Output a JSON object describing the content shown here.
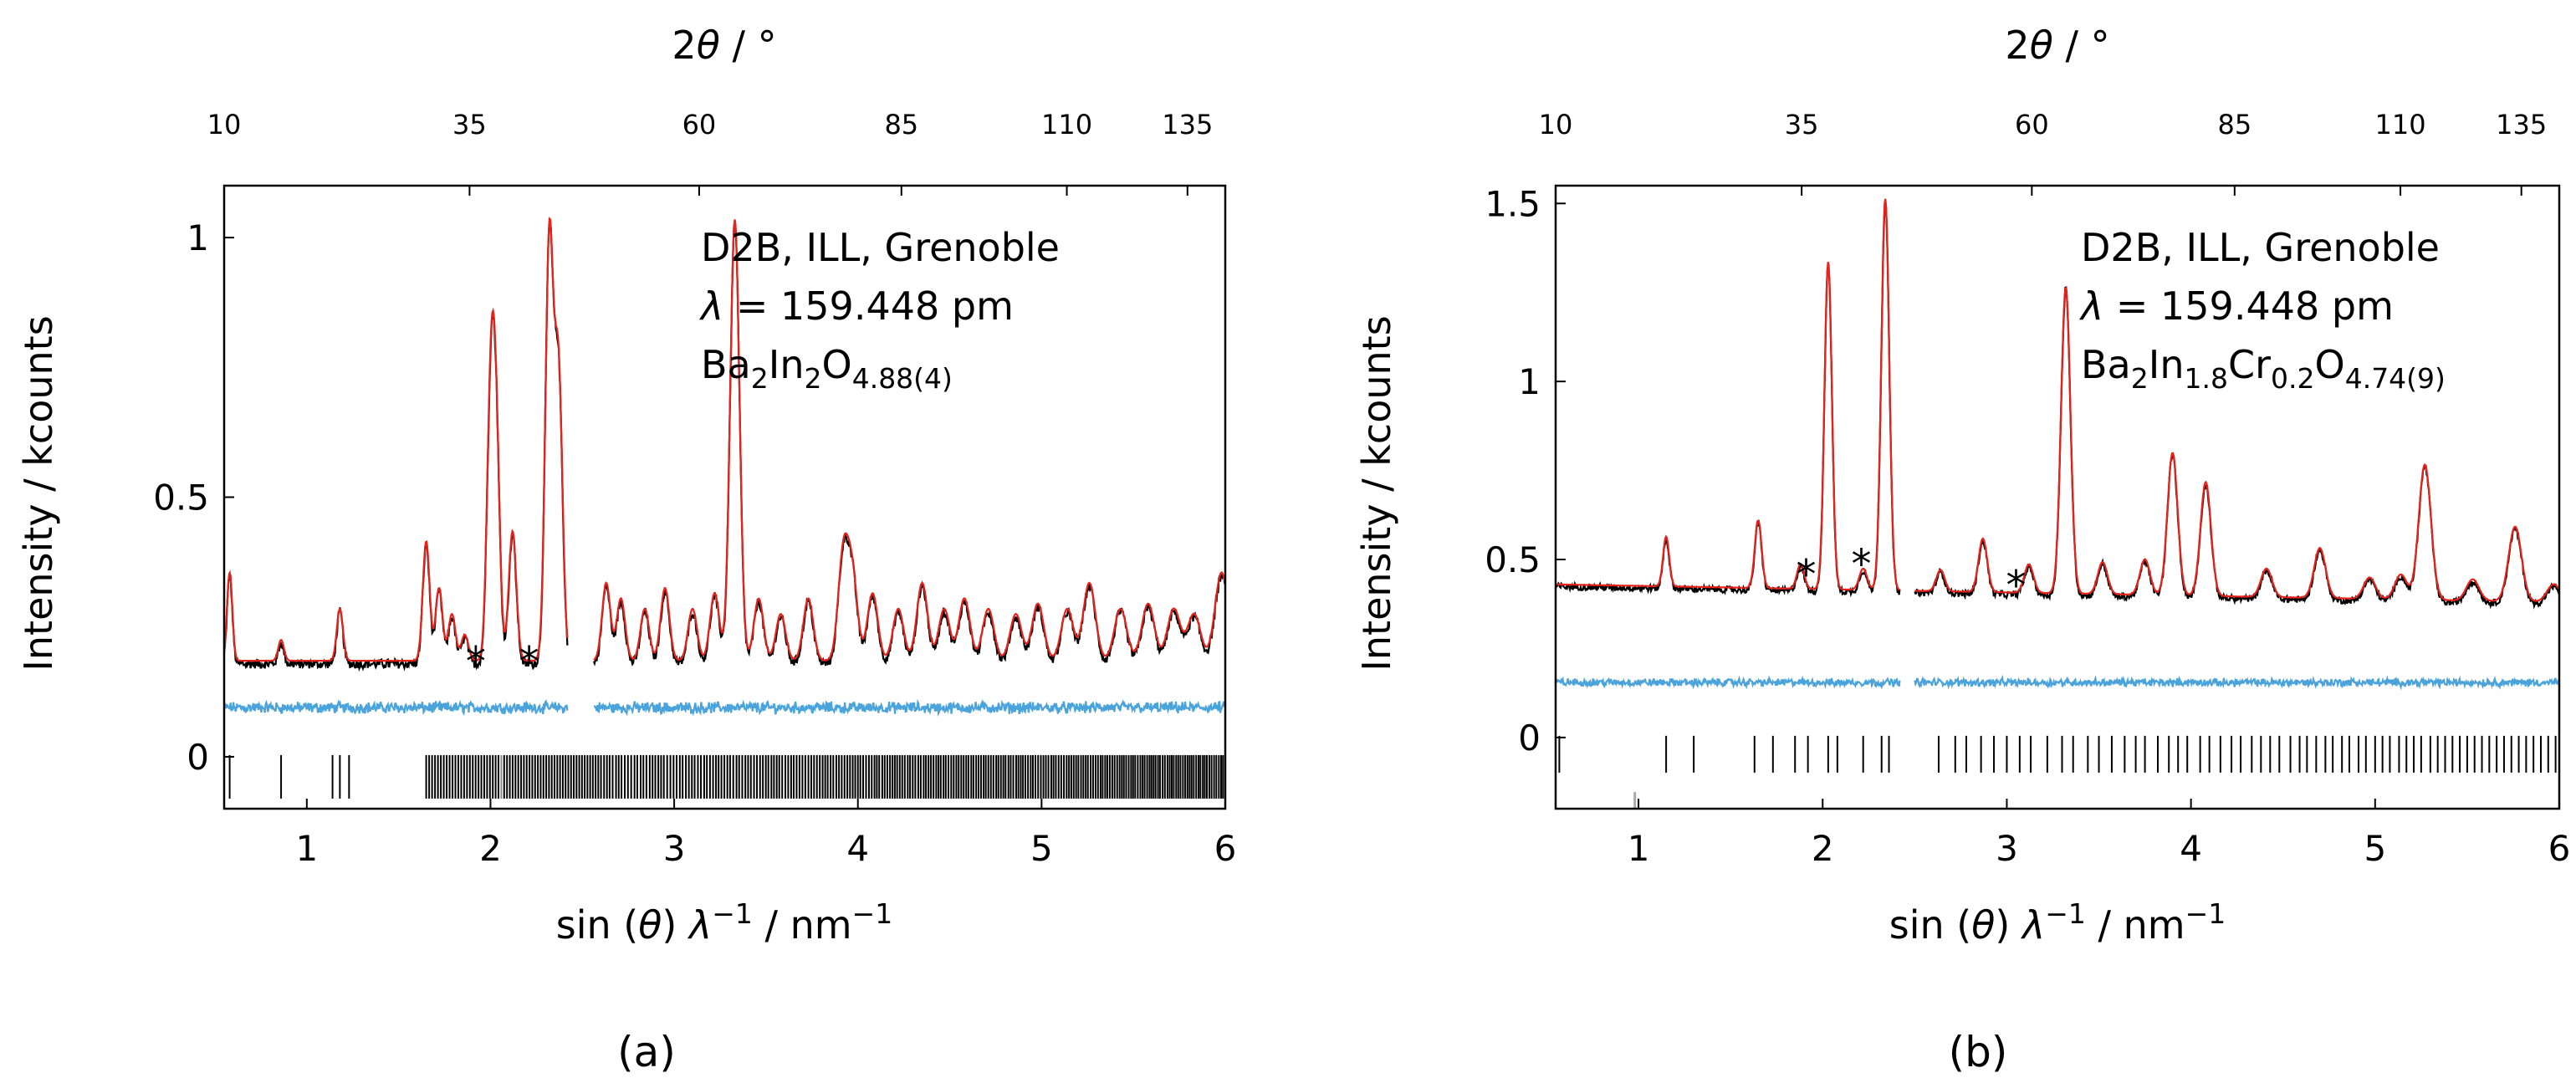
{
  "figure": {
    "panel_labels": [
      "(a)",
      "(b)"
    ]
  },
  "chart_data": [
    {
      "type": "line",
      "panel": "(a)",
      "xlabel": "sin (θ) λ⁻¹ / nm⁻¹",
      "xlabel_parts": {
        "pre": "sin (",
        "theta": "θ",
        "mid": ") ",
        "lambda": "λ",
        "exp1": "−1",
        "unit": " / nm",
        "exp2": "−1"
      },
      "ylabel": "Intensity / kcounts",
      "top_xlabel": "2θ / °",
      "top_xlabel_parts": {
        "pre": "2",
        "theta": "θ",
        "post": " / °"
      },
      "xlim": [
        0.55,
        6.0
      ],
      "ylim": [
        -0.1,
        1.1
      ],
      "x_ticks": [
        1,
        2,
        3,
        4,
        5,
        6
      ],
      "x_tick_labels": [
        "1",
        "2",
        "3",
        "4",
        "5",
        "6"
      ],
      "y_ticks": [
        0,
        0.5,
        1
      ],
      "y_tick_labels": [
        "0",
        "0.5",
        "1"
      ],
      "top_ticks": [
        10,
        35,
        60,
        85,
        110,
        135
      ],
      "top_tick_labels": [
        "10",
        "35",
        "60",
        "85",
        "110",
        "135"
      ],
      "wavelength_pm": 159.448,
      "annotation": {
        "line1": "D2B, ILL, Grenoble",
        "lambda_symbol": "λ",
        "lambda_value": " = 159.448 pm",
        "formula_parts": [
          {
            "text": "Ba",
            "sub": false
          },
          {
            "text": "2",
            "sub": true
          },
          {
            "text": "In",
            "sub": false
          },
          {
            "text": "2",
            "sub": true
          },
          {
            "text": "O",
            "sub": false
          },
          {
            "text": "4.88(4)",
            "sub": true
          }
        ]
      },
      "excluded_ranges": [
        [
          2.42,
          2.56
        ]
      ],
      "baseline": 0.185,
      "difference_offset": 0.1,
      "peaks": [
        {
          "x": 0.58,
          "h": 0.17
        },
        {
          "x": 0.86,
          "h": 0.04
        },
        {
          "x": 1.18,
          "h": 0.1
        },
        {
          "x": 1.65,
          "h": 0.23
        },
        {
          "x": 1.72,
          "h": 0.14
        },
        {
          "x": 1.79,
          "h": 0.09
        },
        {
          "x": 1.86,
          "h": 0.05
        },
        {
          "x": 2.0,
          "h": 0.47
        },
        {
          "x": 2.03,
          "h": 0.42
        },
        {
          "x": 2.12,
          "h": 0.25
        },
        {
          "x": 2.32,
          "h": 0.81
        },
        {
          "x": 2.37,
          "h": 0.56
        },
        {
          "x": 2.63,
          "h": 0.15
        },
        {
          "x": 2.71,
          "h": 0.12
        },
        {
          "x": 2.84,
          "h": 0.1
        },
        {
          "x": 2.95,
          "h": 0.14
        },
        {
          "x": 3.1,
          "h": 0.1
        },
        {
          "x": 3.22,
          "h": 0.13
        },
        {
          "x": 3.33,
          "h": 0.85
        },
        {
          "x": 3.46,
          "h": 0.12
        },
        {
          "x": 3.58,
          "h": 0.09
        },
        {
          "x": 3.73,
          "h": 0.12
        },
        {
          "x": 3.92,
          "h": 0.2
        },
        {
          "x": 3.97,
          "h": 0.16
        },
        {
          "x": 4.08,
          "h": 0.13
        },
        {
          "x": 4.22,
          "h": 0.1
        },
        {
          "x": 4.35,
          "h": 0.15
        },
        {
          "x": 4.47,
          "h": 0.1
        },
        {
          "x": 4.58,
          "h": 0.12
        },
        {
          "x": 4.71,
          "h": 0.1
        },
        {
          "x": 4.86,
          "h": 0.09
        },
        {
          "x": 4.98,
          "h": 0.11
        },
        {
          "x": 5.14,
          "h": 0.1
        },
        {
          "x": 5.26,
          "h": 0.15
        },
        {
          "x": 5.43,
          "h": 0.1
        },
        {
          "x": 5.58,
          "h": 0.11
        },
        {
          "x": 5.72,
          "h": 0.1
        },
        {
          "x": 5.83,
          "h": 0.09
        },
        {
          "x": 5.98,
          "h": 0.17
        }
      ],
      "impurity_markers": [
        1.92,
        2.21
      ],
      "reflection_markers": {
        "x_start": 0.58,
        "x_dense": 1.65,
        "x_end": 6.0,
        "gray_at": [
          2.06,
          2.28
        ]
      },
      "legend": "none",
      "series": [
        {
          "name": "observed",
          "color": "#000000"
        },
        {
          "name": "calculated",
          "color": "#e8221a"
        },
        {
          "name": "difference",
          "color": "#4ba3dc"
        },
        {
          "name": "reflection positions",
          "color": "#000000"
        }
      ]
    },
    {
      "type": "line",
      "panel": "(b)",
      "xlabel": "sin (θ) λ⁻¹ / nm⁻¹",
      "xlabel_parts": {
        "pre": "sin (",
        "theta": "θ",
        "mid": ") ",
        "lambda": "λ",
        "exp1": "−1",
        "unit": " / nm",
        "exp2": "−1"
      },
      "ylabel": "Intensity / kcounts",
      "top_xlabel": "2θ / °",
      "top_xlabel_parts": {
        "pre": "2",
        "theta": "θ",
        "post": " / °"
      },
      "xlim": [
        0.55,
        6.0
      ],
      "ylim": [
        -0.2,
        1.55
      ],
      "x_ticks": [
        1,
        2,
        3,
        4,
        5,
        6
      ],
      "x_tick_labels": [
        "1",
        "2",
        "3",
        "4",
        "5",
        "6"
      ],
      "y_ticks": [
        0,
        0.5,
        1,
        1.5
      ],
      "y_tick_labels": [
        "0",
        "0.5",
        "1",
        "1.5"
      ],
      "top_ticks": [
        10,
        35,
        60,
        85,
        110,
        135
      ],
      "top_tick_labels": [
        "10",
        "35",
        "60",
        "85",
        "110",
        "135"
      ],
      "wavelength_pm": 159.448,
      "annotation": {
        "line1": "D2B, ILL, Grenoble",
        "lambda_symbol": "λ",
        "lambda_value": " = 159.448 pm",
        "formula_parts": [
          {
            "text": "Ba",
            "sub": false
          },
          {
            "text": "2",
            "sub": true
          },
          {
            "text": "In",
            "sub": false
          },
          {
            "text": "1.8",
            "sub": true
          },
          {
            "text": "Cr",
            "sub": false
          },
          {
            "text": "0.2",
            "sub": true
          },
          {
            "text": "O",
            "sub": false
          },
          {
            "text": "4.74(9)",
            "sub": true
          }
        ]
      },
      "excluded_ranges": [
        [
          2.42,
          2.5
        ]
      ],
      "baseline": 0.43,
      "baseline_end": 0.38,
      "difference_offset": 0.16,
      "peaks": [
        {
          "x": 1.15,
          "h": 0.14
        },
        {
          "x": 1.65,
          "h": 0.19
        },
        {
          "x": 1.88,
          "h": 0.07
        },
        {
          "x": 2.03,
          "h": 0.92
        },
        {
          "x": 2.22,
          "h": 0.06
        },
        {
          "x": 2.34,
          "h": 1.1
        },
        {
          "x": 2.64,
          "h": 0.06
        },
        {
          "x": 2.87,
          "h": 0.15
        },
        {
          "x": 3.12,
          "h": 0.08
        },
        {
          "x": 3.32,
          "h": 0.86
        },
        {
          "x": 3.52,
          "h": 0.09
        },
        {
          "x": 3.75,
          "h": 0.1
        },
        {
          "x": 3.9,
          "h": 0.4
        },
        {
          "x": 4.08,
          "h": 0.32
        },
        {
          "x": 4.41,
          "h": 0.08
        },
        {
          "x": 4.7,
          "h": 0.14
        },
        {
          "x": 4.97,
          "h": 0.06
        },
        {
          "x": 5.14,
          "h": 0.07
        },
        {
          "x": 5.27,
          "h": 0.38
        },
        {
          "x": 5.53,
          "h": 0.06
        },
        {
          "x": 5.76,
          "h": 0.21
        },
        {
          "x": 5.97,
          "h": 0.05
        }
      ],
      "impurity_markers": [
        1.91,
        2.21,
        3.05
      ],
      "reflection_markers": {
        "positions": [
          0.57,
          1.15,
          1.3,
          1.63,
          1.73,
          1.85,
          1.92,
          2.03,
          2.08,
          2.22,
          2.32,
          2.36,
          2.63,
          2.72,
          2.78,
          2.86,
          2.93,
          3.0,
          3.07,
          3.13,
          3.22,
          3.3,
          3.36,
          3.44,
          3.5,
          3.57,
          3.64,
          3.7,
          3.75,
          3.82,
          3.88,
          3.93,
          3.98,
          4.05,
          4.1,
          4.16,
          4.22,
          4.27,
          4.33,
          4.38,
          4.43,
          4.48,
          4.54,
          4.59,
          4.63,
          4.68,
          4.73,
          4.77,
          4.82,
          4.86,
          4.91,
          4.95,
          5.0,
          5.04,
          5.08,
          5.13,
          5.17,
          5.21,
          5.25,
          5.3,
          5.34,
          5.38,
          5.42,
          5.46,
          5.5,
          5.54,
          5.58,
          5.62,
          5.66,
          5.7,
          5.74,
          5.78,
          5.82,
          5.86,
          5.9,
          5.94,
          5.98
        ],
        "gray_at": [
          3.05,
          3.42,
          0.98
        ]
      },
      "legend": "none",
      "series": [
        {
          "name": "observed",
          "color": "#000000"
        },
        {
          "name": "calculated",
          "color": "#e8221a"
        },
        {
          "name": "difference",
          "color": "#4ba3dc"
        },
        {
          "name": "reflection positions",
          "color": "#000000"
        }
      ]
    }
  ]
}
